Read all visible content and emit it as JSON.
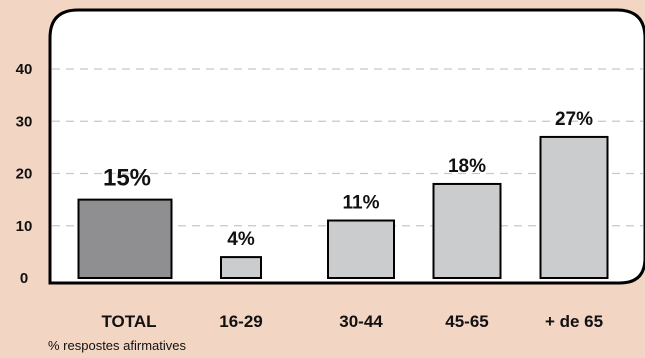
{
  "chart_data": {
    "type": "bar",
    "categories": [
      "TOTAL",
      "16-29",
      "30-44",
      "45-65",
      "+ de 65"
    ],
    "values": [
      15,
      4,
      11,
      18,
      27
    ],
    "data_labels": [
      "15%",
      "4%",
      "11%",
      "18%",
      "27%"
    ],
    "ylim": [
      0,
      40
    ],
    "yticks": [
      0,
      10,
      20,
      30,
      40
    ],
    "grid": true,
    "grid_style": "dashed",
    "footnote": "% respostes afirmatives"
  },
  "colors": {
    "background": "#f3d5c4",
    "plot_background": "#ffffff",
    "total_bar": "#8f8f91",
    "group_bar": "#cbccce",
    "grid": "#c8c8c8",
    "outline": "#000000"
  }
}
